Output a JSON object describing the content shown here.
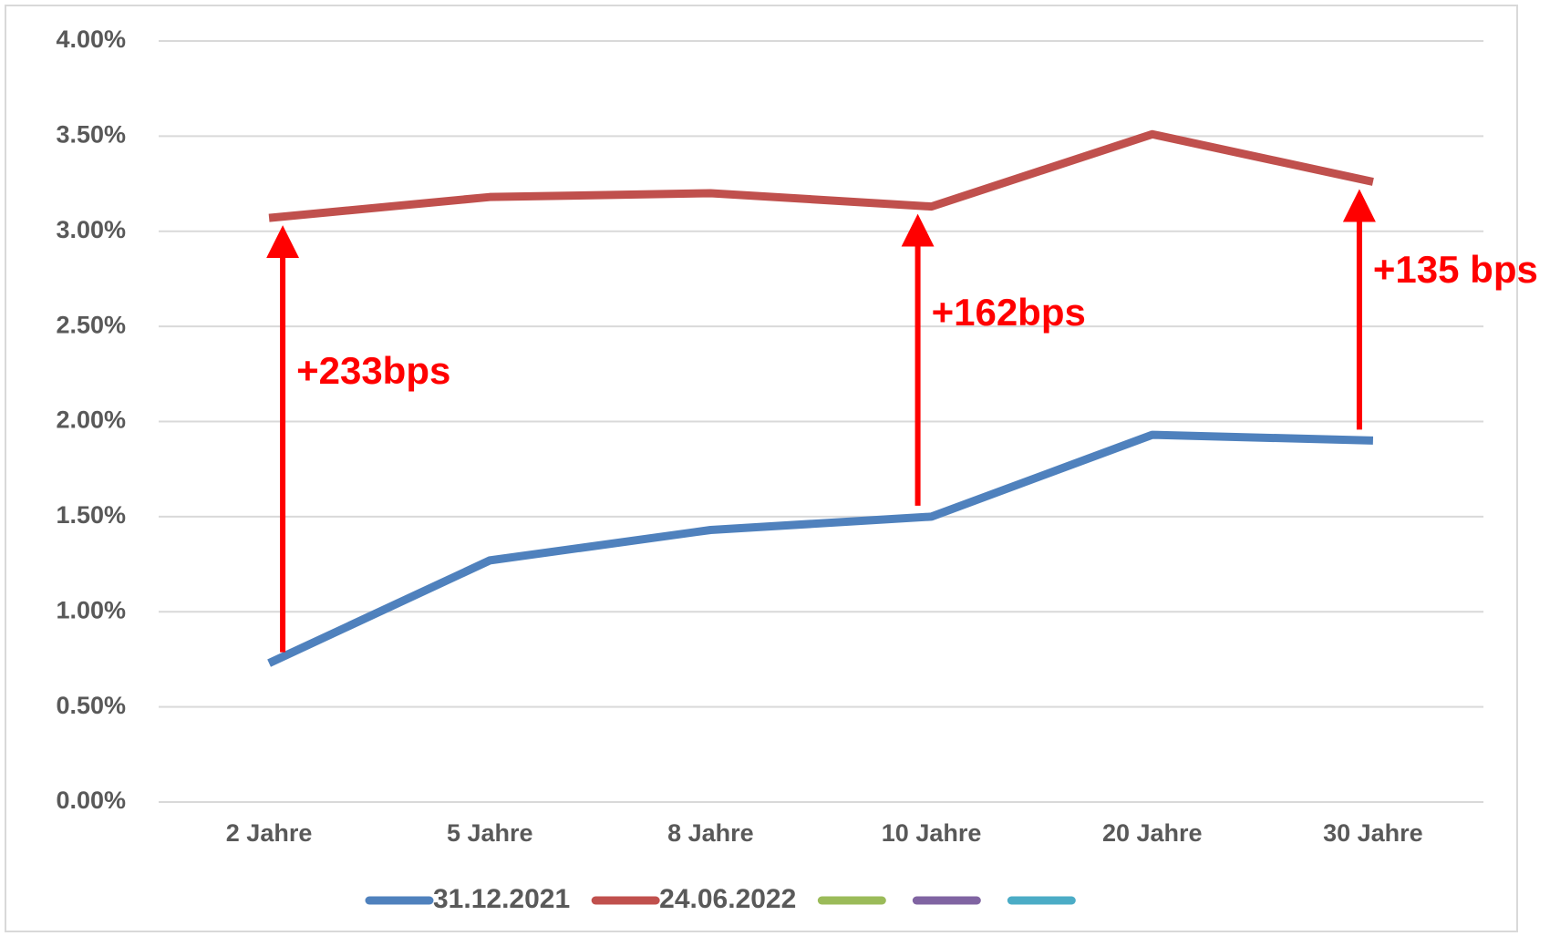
{
  "chart_data": {
    "type": "line",
    "categories": [
      "2 Jahre",
      "5 Jahre",
      "8 Jahre",
      "10 Jahre",
      "20 Jahre",
      "30 Jahre"
    ],
    "series": [
      {
        "name": "31.12.2021",
        "color": "#4f81bd",
        "values": [
          0.73,
          1.27,
          1.43,
          1.5,
          1.93,
          1.9
        ]
      },
      {
        "name": "24.06.2022",
        "color": "#c0504d",
        "values": [
          3.07,
          3.18,
          3.2,
          3.13,
          3.51,
          3.26
        ]
      }
    ],
    "legend_swatches": [
      "#9bbb59",
      "#8064a2",
      "#4bacc6"
    ],
    "ylim": [
      0,
      4
    ],
    "yticks": [
      {
        "value": 0,
        "label": "0.00%"
      },
      {
        "value": 0.5,
        "label": "0.50%"
      },
      {
        "value": 1,
        "label": "1.00%"
      },
      {
        "value": 1.5,
        "label": "1.50%"
      },
      {
        "value": 2,
        "label": "2.00%"
      },
      {
        "value": 2.5,
        "label": "2.50%"
      },
      {
        "value": 3,
        "label": "3.00%"
      },
      {
        "value": 3.5,
        "label": "3.50%"
      },
      {
        "value": 4,
        "label": "4.00%"
      }
    ],
    "grid": true,
    "legend": "bottom",
    "annotation_color": "#ff0000",
    "annotations": [
      {
        "text": "+233bps",
        "category": "2 Jahre"
      },
      {
        "text": "+162bps",
        "category": "10 Jahre"
      },
      {
        "text": "+135 bps",
        "category": "30 Jahre"
      }
    ]
  }
}
